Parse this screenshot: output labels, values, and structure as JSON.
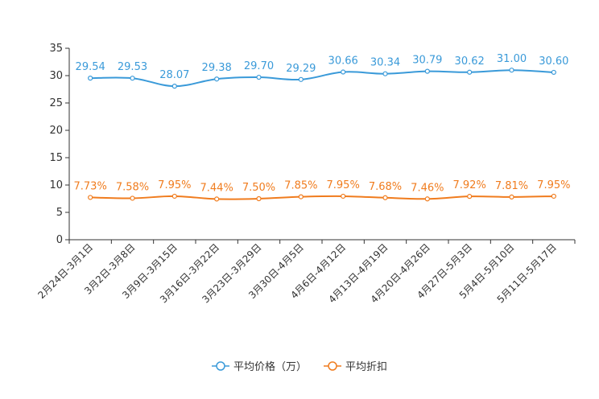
{
  "chart_data": {
    "type": "line",
    "title": "",
    "xlabel": "",
    "ylabel": "",
    "ylim": [
      0,
      35
    ],
    "yticks": [
      0,
      5,
      10,
      15,
      20,
      25,
      30,
      35
    ],
    "grid": false,
    "legend_position": "bottom",
    "categories": [
      "2月24日-3月1日",
      "3月2日-3月8日",
      "3月9日-3月15日",
      "3月16日-3月22日",
      "3月23日-3月29日",
      "3月30日-4月5日",
      "4月6日-4月12日",
      "4月13日-4月19日",
      "4月20日-4月26日",
      "4月27日-5月3日",
      "5月4日-5月10日",
      "5月11日-5月17日"
    ],
    "series": [
      {
        "name": "平均价格（万）",
        "color": "#3a9ad9",
        "values": [
          29.54,
          29.53,
          28.07,
          29.38,
          29.7,
          29.29,
          30.66,
          30.34,
          30.79,
          30.62,
          31.0,
          30.6
        ],
        "labels": [
          "29.54",
          "29.53",
          "28.07",
          "29.38",
          "29.70",
          "29.29",
          "30.66",
          "30.34",
          "30.79",
          "30.62",
          "31.00",
          "30.60"
        ]
      },
      {
        "name": "平均折扣",
        "color": "#f07c1e",
        "values": [
          7.73,
          7.58,
          7.95,
          7.44,
          7.5,
          7.85,
          7.95,
          7.68,
          7.46,
          7.92,
          7.81,
          7.95
        ],
        "labels": [
          "7.73%",
          "7.58%",
          "7.95%",
          "7.44%",
          "7.50%",
          "7.85%",
          "7.95%",
          "7.68%",
          "7.46%",
          "7.92%",
          "7.81%",
          "7.95%"
        ]
      }
    ]
  }
}
